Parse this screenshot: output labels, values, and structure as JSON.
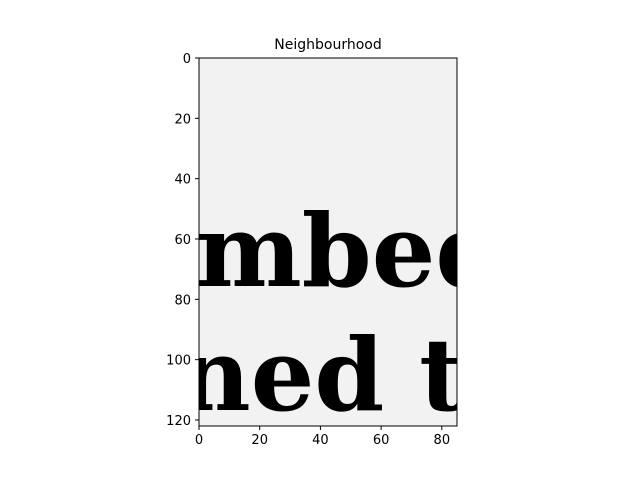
{
  "chart_data": {
    "type": "image",
    "title": "Neighbourhood",
    "xlabel": "",
    "ylabel": "",
    "xlim": [
      0,
      85
    ],
    "ylim": [
      122,
      0
    ],
    "y_inverted": true,
    "xticks": [
      0,
      20,
      40,
      60,
      80
    ],
    "yticks": [
      0,
      20,
      40,
      60,
      80,
      100,
      120
    ],
    "grid": false,
    "colormap": "gray",
    "image_text_lines": [
      "mbed",
      "ned to"
    ]
  },
  "colors": {
    "background": "#f2f2f2",
    "ink": "#1a1a1a",
    "axes": "#000000"
  }
}
